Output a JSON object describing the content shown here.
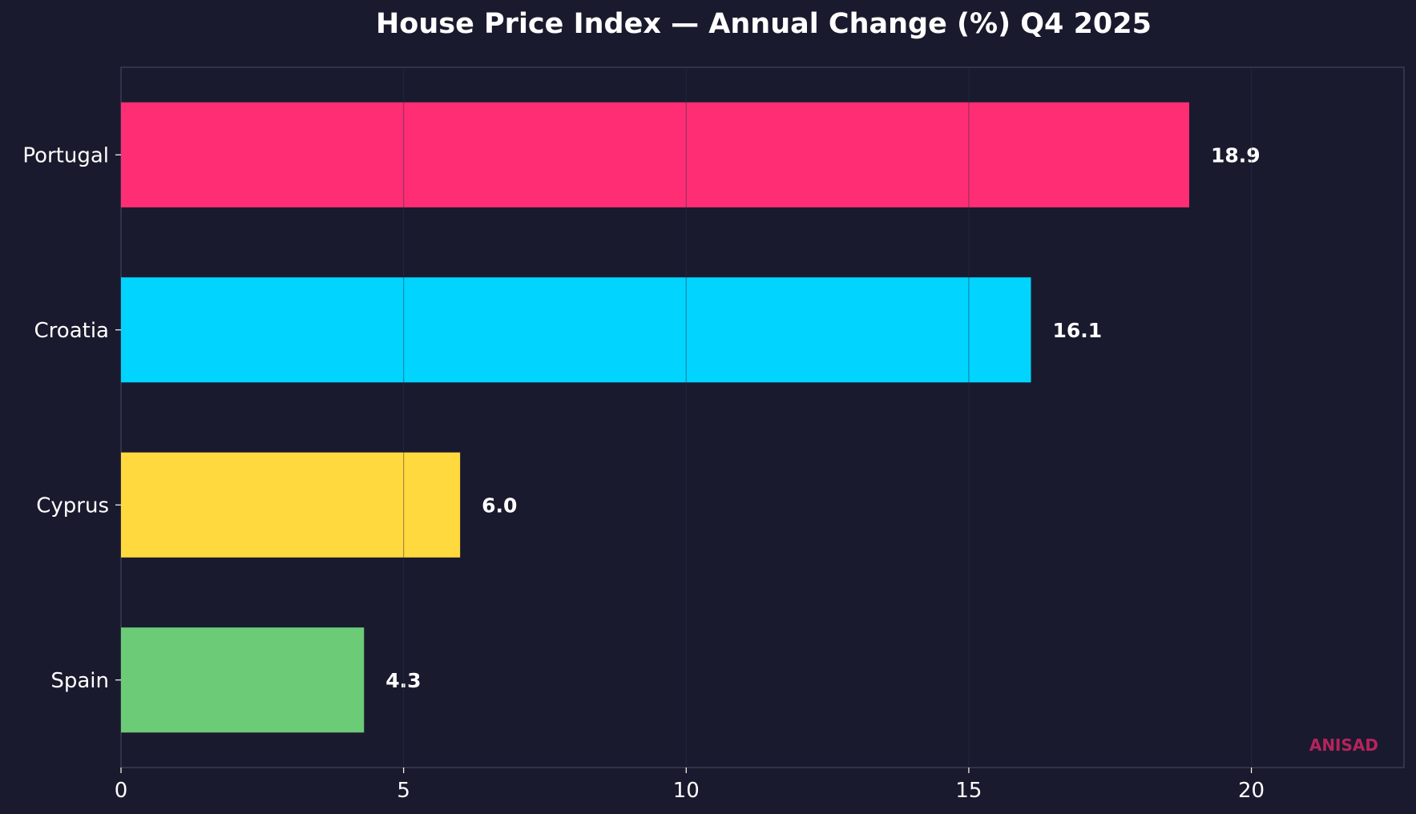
{
  "chart_data": {
    "type": "bar",
    "orientation": "horizontal",
    "title": "House Price Index — Annual Change (%) Q4 2025",
    "xlabel": "",
    "ylabel": "",
    "categories": [
      "Portugal",
      "Croatia",
      "Cyprus",
      "Spain"
    ],
    "values": [
      18.9,
      16.1,
      6.0,
      4.3
    ],
    "value_labels": [
      "18.9",
      "16.1",
      "6.0",
      "4.3"
    ],
    "xlim": [
      0,
      22.7
    ],
    "xticks": [
      0,
      5,
      10,
      15,
      20
    ],
    "grid": "vertical",
    "colors": [
      "#ff2e74",
      "#00d4ff",
      "#ffd93d",
      "#6bcb77"
    ],
    "watermark": "ANISAD"
  },
  "theme": {
    "background": "#1a1a2e",
    "text": "#ffffff",
    "grid": "#2a3149",
    "spine": "#3a3a55",
    "watermark": "#b5245c"
  }
}
